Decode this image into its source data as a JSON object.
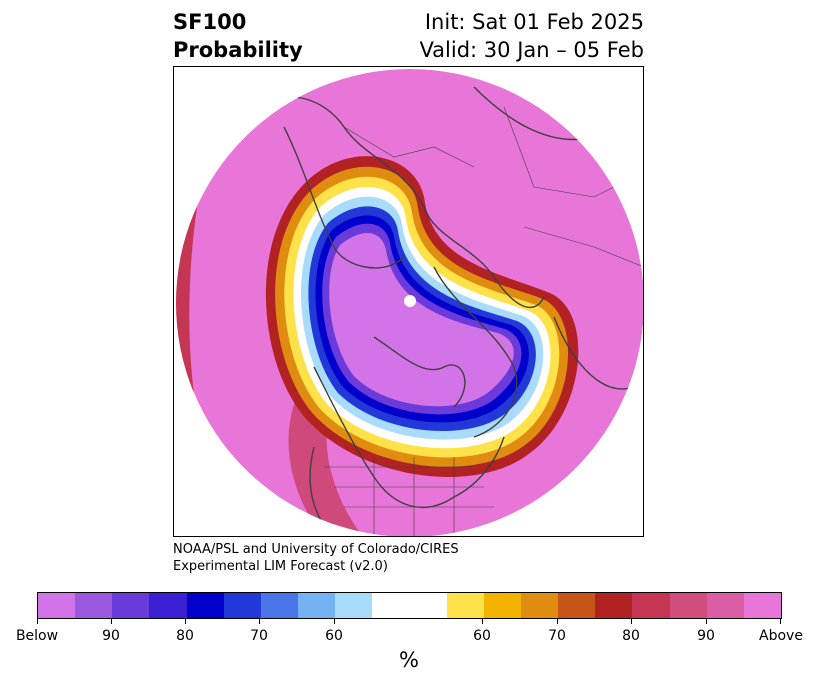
{
  "header": {
    "title_line1": "SF100",
    "title_line2": "Probability",
    "init": "Init: Sat 01 Feb 2025",
    "valid": "Valid: 30 Jan – 05 Feb"
  },
  "credit": {
    "line1": "NOAA/PSL and University of Colorado/CIRES",
    "line2": "Experimental LIM Forecast (v2.0)"
  },
  "colorbar": {
    "colors": [
      "#d373e8",
      "#9b59e0",
      "#6a3adb",
      "#3a1fd4",
      "#0000cc",
      "#2338d9",
      "#4a76e8",
      "#74b2f4",
      "#a9dcfb",
      "#ffffff",
      "#ffe24a",
      "#f4b300",
      "#e08c10",
      "#c85518",
      "#b22222",
      "#c43654",
      "#d04d7c",
      "#da5ea6",
      "#e875d8"
    ],
    "tick_labels": [
      "Below",
      "90",
      "80",
      "70",
      "60",
      "60",
      "70",
      "80",
      "90",
      "Above"
    ],
    "unit": "%"
  },
  "map": {
    "background_color": "#e875d8",
    "below_core_color": "#d373e8",
    "coastline_color": "#404040"
  }
}
